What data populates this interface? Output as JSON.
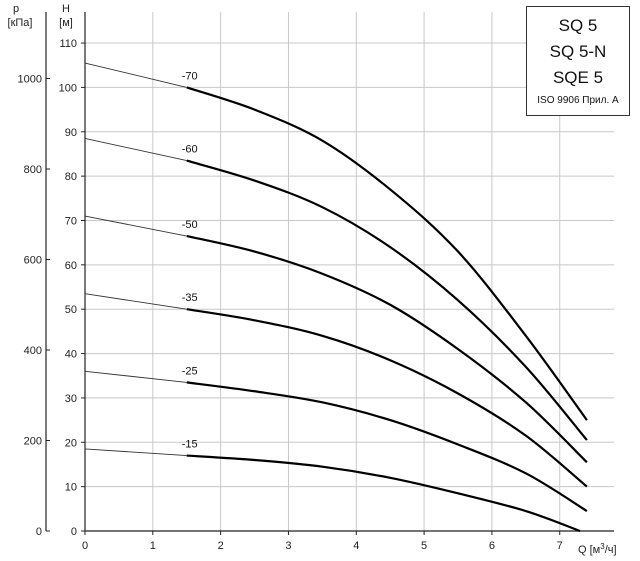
{
  "chart_data": {
    "type": "line",
    "xlabel": "Q [м³/ч]",
    "ylabel": "H [м]",
    "y2label": "p [кПа]",
    "ylabel_name": "H",
    "ylabel_unit": "[м]",
    "y2label_name": "p",
    "y2label_unit": "[кПа]",
    "xlabel_text": "Q [м",
    "xlabel_sup": "3",
    "xlabel_tail": "/ч]",
    "xlim": [
      0,
      7.8
    ],
    "ylim": [
      0,
      117
    ],
    "y2lim": [
      0,
      1147
    ],
    "x_ticks": [
      0,
      1,
      2,
      3,
      4,
      5,
      6,
      7
    ],
    "y_ticks": [
      0,
      10,
      20,
      30,
      40,
      50,
      60,
      70,
      80,
      90,
      100,
      110
    ],
    "y2_ticks": [
      0,
      200,
      400,
      600,
      800,
      1000
    ],
    "grid": true,
    "legend": {
      "models": [
        "SQ 5",
        "SQ 5-N",
        "SQE 5"
      ],
      "standard": "ISO 9906 Прил. A",
      "placement": "top-right"
    },
    "series": [
      {
        "name": "-70",
        "x": [
          0,
          1.5,
          2.5,
          3.5,
          4.5,
          5.5,
          6.5,
          7.4
        ],
        "y": [
          105.5,
          100,
          95,
          88,
          77,
          63,
          44,
          25
        ]
      },
      {
        "name": "-60",
        "x": [
          0,
          1.5,
          2.5,
          3.5,
          4.5,
          5.5,
          6.5,
          7.4
        ],
        "y": [
          88.5,
          83.5,
          79,
          73,
          64,
          52,
          37,
          20.5
        ]
      },
      {
        "name": "-50",
        "x": [
          0,
          1.5,
          2.5,
          3.5,
          4.5,
          5.5,
          6.5,
          7.4
        ],
        "y": [
          71,
          66.5,
          63,
          58,
          51,
          41,
          29,
          15.5
        ]
      },
      {
        "name": "-35",
        "x": [
          0,
          1.5,
          2.5,
          3.5,
          4.5,
          5.5,
          6.5,
          7.4
        ],
        "y": [
          53.5,
          50,
          47.5,
          44,
          38.5,
          31,
          21.5,
          10
        ]
      },
      {
        "name": "-25",
        "x": [
          0,
          1.5,
          2.5,
          3.5,
          4.5,
          5.5,
          6.5,
          7.4
        ],
        "y": [
          36,
          33.5,
          31.5,
          29,
          25,
          19.5,
          13,
          4.5
        ]
      },
      {
        "name": "-15",
        "x": [
          0,
          1.5,
          2.5,
          3.5,
          4.5,
          5.5,
          6.5,
          7.3
        ],
        "y": [
          18.5,
          17,
          16,
          14.5,
          12,
          8.5,
          4.5,
          0
        ]
      }
    ]
  }
}
